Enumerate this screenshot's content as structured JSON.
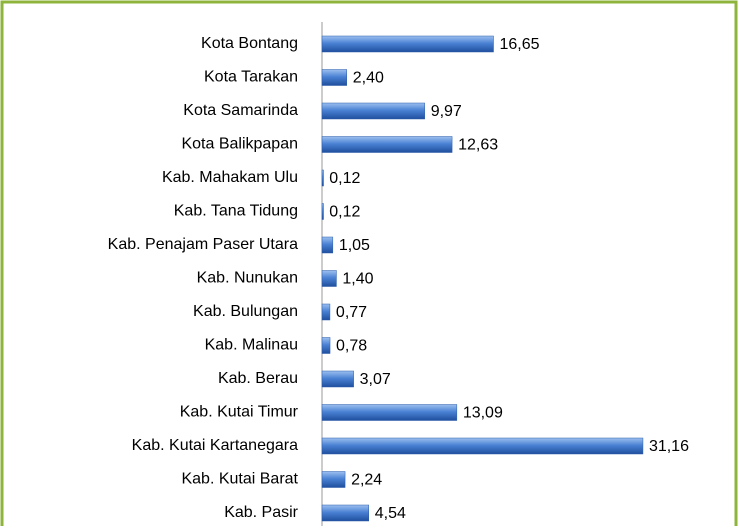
{
  "chart_data": {
    "type": "bar",
    "orientation": "horizontal",
    "categories": [
      "Kota Bontang",
      "Kota Tarakan",
      "Kota Samarinda",
      "Kota Balikpapan",
      "Kab. Mahakam Ulu",
      "Kab. Tana Tidung",
      "Kab. Penajam Paser Utara",
      "Kab. Nunukan",
      "Kab. Bulungan",
      "Kab. Malinau",
      "Kab. Berau",
      "Kab. Kutai Timur",
      "Kab. Kutai Kartanegara",
      "Kab. Kutai Barat",
      "Kab. Pasir"
    ],
    "values": [
      16.65,
      2.4,
      9.97,
      12.63,
      0.12,
      0.12,
      1.05,
      1.4,
      0.77,
      0.78,
      3.07,
      13.09,
      31.16,
      2.24,
      4.54
    ],
    "value_labels": [
      "16,65",
      "2,40",
      "9,97",
      "12,63",
      "0,12",
      "0,12",
      "1,05",
      "1,40",
      "0,77",
      "0,78",
      "3,07",
      "13,09",
      "31,16",
      "2,24",
      "4,54"
    ],
    "color": "#3a6fc4",
    "xlim": [
      0,
      40
    ]
  }
}
